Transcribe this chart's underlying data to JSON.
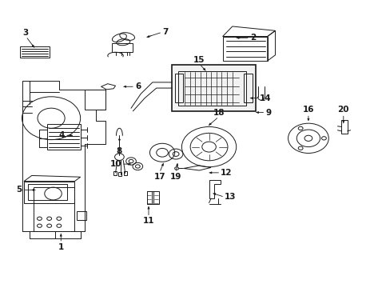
{
  "bg_color": "#ffffff",
  "line_color": "#1a1a1a",
  "fig_width": 4.89,
  "fig_height": 3.6,
  "dpi": 100,
  "label_positions": {
    "1": [
      0.155,
      0.195,
      0.155,
      0.155,
      "center",
      "top"
    ],
    "2": [
      0.6,
      0.87,
      0.64,
      0.87,
      "left",
      "center"
    ],
    "3": [
      0.09,
      0.83,
      0.065,
      0.875,
      "center",
      "bottom"
    ],
    "4": [
      0.19,
      0.53,
      0.165,
      0.53,
      "right",
      "center"
    ],
    "5": [
      0.095,
      0.34,
      0.055,
      0.34,
      "right",
      "center"
    ],
    "6": [
      0.31,
      0.7,
      0.345,
      0.7,
      "left",
      "center"
    ],
    "7": [
      0.37,
      0.87,
      0.415,
      0.89,
      "left",
      "center"
    ],
    "8": [
      0.305,
      0.53,
      0.305,
      0.49,
      "center",
      "top"
    ],
    "9": [
      0.65,
      0.61,
      0.68,
      0.61,
      "left",
      "center"
    ],
    "10": [
      0.34,
      0.43,
      0.31,
      0.43,
      "right",
      "center"
    ],
    "11": [
      0.38,
      0.29,
      0.38,
      0.245,
      "center",
      "top"
    ],
    "12": [
      0.53,
      0.4,
      0.565,
      0.4,
      "left",
      "center"
    ],
    "13": [
      0.54,
      0.33,
      0.575,
      0.315,
      "left",
      "center"
    ],
    "14": [
      0.635,
      0.66,
      0.665,
      0.66,
      "left",
      "center"
    ],
    "15": [
      0.53,
      0.75,
      0.51,
      0.78,
      "center",
      "bottom"
    ],
    "16": [
      0.79,
      0.58,
      0.79,
      0.605,
      "center",
      "bottom"
    ],
    "17": [
      0.42,
      0.44,
      0.408,
      0.4,
      "center",
      "top"
    ],
    "18": [
      0.53,
      0.56,
      0.56,
      0.595,
      "center",
      "bottom"
    ],
    "19": [
      0.455,
      0.44,
      0.45,
      0.4,
      "center",
      "top"
    ],
    "20": [
      0.88,
      0.565,
      0.88,
      0.605,
      "center",
      "bottom"
    ]
  }
}
